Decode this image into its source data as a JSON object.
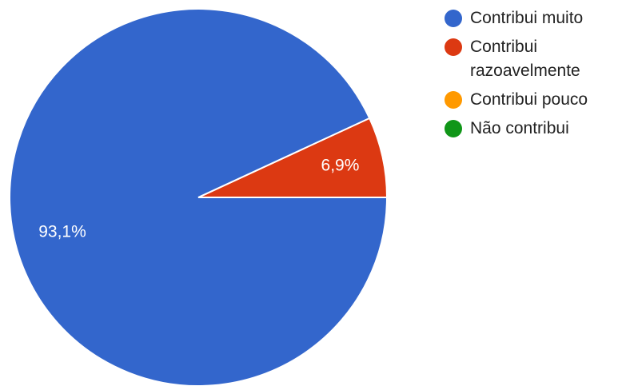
{
  "chart_data": {
    "type": "pie",
    "slices": [
      {
        "label": "Contribui muito",
        "value": 93.1,
        "display": "93,1%",
        "color": "#3366cc"
      },
      {
        "label": "Contribui razoavelmente",
        "value": 6.9,
        "display": "6,9%",
        "color": "#dc3912"
      },
      {
        "label": "Contribui pouco",
        "value": 0,
        "display": "",
        "color": "#ff9900"
      },
      {
        "label": "Não contribui",
        "value": 0,
        "display": "",
        "color": "#109618"
      }
    ],
    "legend_position": "right"
  }
}
